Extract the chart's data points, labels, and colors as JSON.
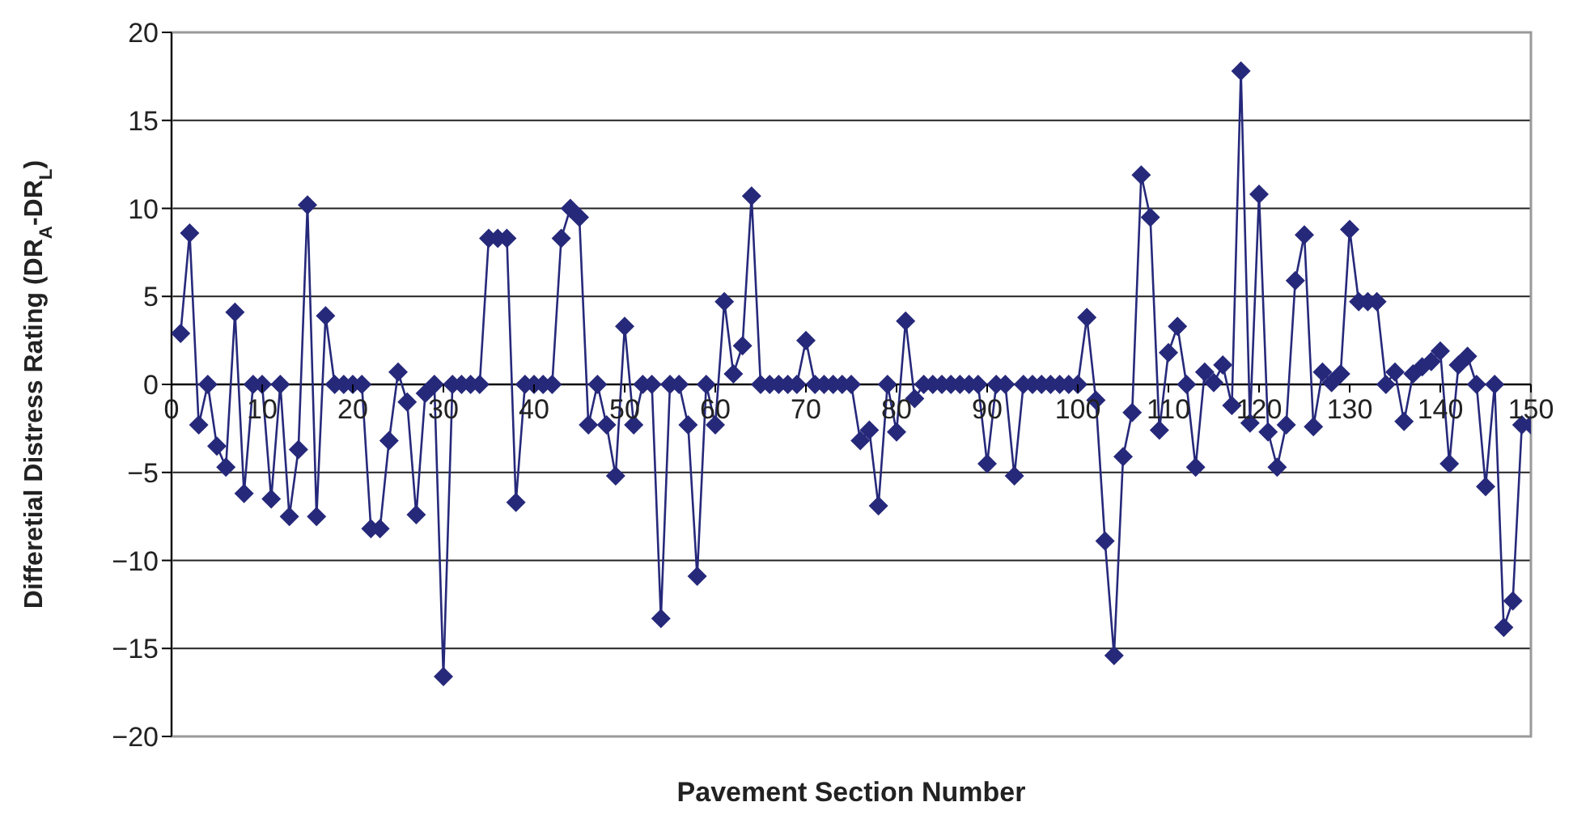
{
  "chart_data": {
    "type": "line",
    "xlabel": "Pavement Section Number",
    "ylabel": "Differetial Distress Rating (DR$_{A}$-DR$_{L}$)",
    "x": [
      1,
      2,
      3,
      4,
      5,
      6,
      7,
      8,
      9,
      10,
      11,
      12,
      13,
      14,
      15,
      16,
      17,
      18,
      19,
      20,
      21,
      22,
      23,
      24,
      25,
      26,
      27,
      28,
      29,
      30,
      31,
      32,
      33,
      34,
      35,
      36,
      37,
      38,
      39,
      40,
      41,
      42,
      43,
      44,
      45,
      46,
      47,
      48,
      49,
      50,
      51,
      52,
      53,
      54,
      55,
      56,
      57,
      58,
      59,
      60,
      61,
      62,
      63,
      64,
      65,
      66,
      67,
      68,
      69,
      70,
      71,
      72,
      73,
      74,
      75,
      76,
      77,
      78,
      79,
      80,
      81,
      82,
      83,
      84,
      85,
      86,
      87,
      88,
      89,
      90,
      91,
      92,
      93,
      94,
      95,
      96,
      97,
      98,
      99,
      100,
      101,
      102,
      103,
      104,
      105,
      106,
      107,
      108,
      109,
      110,
      111,
      112,
      113,
      114,
      115,
      116,
      117,
      118,
      119,
      120,
      121,
      122,
      123,
      124,
      125,
      126,
      127,
      128,
      129,
      130,
      131,
      132,
      133,
      134,
      135,
      136,
      137,
      138,
      139,
      140,
      141,
      142,
      143,
      144,
      145,
      146,
      147,
      148,
      149,
      150
    ],
    "series": [
      {
        "color": "#26297a",
        "values": [
          2.9,
          8.6,
          -2.3,
          0,
          -3.5,
          -4.7,
          4.1,
          -6.2,
          0,
          0,
          -6.5,
          0,
          -7.5,
          -3.7,
          10.2,
          -7.5,
          3.9,
          0,
          0,
          0,
          0,
          -8.2,
          -8.2,
          -3.2,
          0.7,
          -1,
          -7.4,
          -0.5,
          0,
          -16.6,
          0,
          0,
          0,
          0,
          8.3,
          8.3,
          8.3,
          -6.7,
          0,
          0,
          0,
          0,
          8.3,
          10,
          9.5,
          -2.3,
          0,
          -2.3,
          -5.2,
          3.3,
          -2.3,
          0,
          0,
          -13.3,
          0,
          0,
          -2.3,
          -10.9,
          0,
          -2.3,
          4.7,
          0.6,
          2.2,
          10.7,
          0,
          0,
          0,
          0,
          0,
          2.5,
          0,
          0,
          0,
          0,
          0,
          -3.2,
          -2.6,
          -6.9,
          0,
          -2.7,
          3.6,
          -0.8,
          0,
          0,
          0,
          0,
          0,
          0,
          0,
          -4.5,
          0,
          0,
          -5.2,
          0,
          0,
          0,
          0,
          0,
          0,
          0,
          3.8,
          -0.9,
          -8.9,
          -15.4,
          -4.1,
          -1.6,
          11.9,
          9.5,
          -2.6,
          1.8,
          3.3,
          0,
          -4.7,
          0.7,
          0.1,
          1.1,
          -1.2,
          17.8,
          -2.2,
          10.8,
          -2.7,
          -4.7,
          -2.3,
          5.9,
          8.5,
          -2.4,
          0.7,
          0.1,
          0.6,
          8.8,
          4.7,
          4.7,
          4.7,
          0,
          0.7,
          -2.1,
          0.6,
          1,
          1.3,
          1.9,
          -4.5,
          1.1,
          1.6,
          0,
          -5.8,
          0,
          -13.8,
          -12.3,
          -2.3,
          -2.3
        ]
      }
    ],
    "xlim": [
      0,
      150
    ],
    "xticks": [
      0,
      10,
      20,
      30,
      40,
      50,
      60,
      70,
      80,
      90,
      100,
      110,
      120,
      130,
      140,
      150
    ],
    "ylim": [
      -20,
      20
    ],
    "yticks": [
      -20,
      -15,
      -10,
      -5,
      0,
      5,
      10,
      15,
      20
    ],
    "grid": "y",
    "marker": "diamond",
    "line_style": "solid"
  }
}
